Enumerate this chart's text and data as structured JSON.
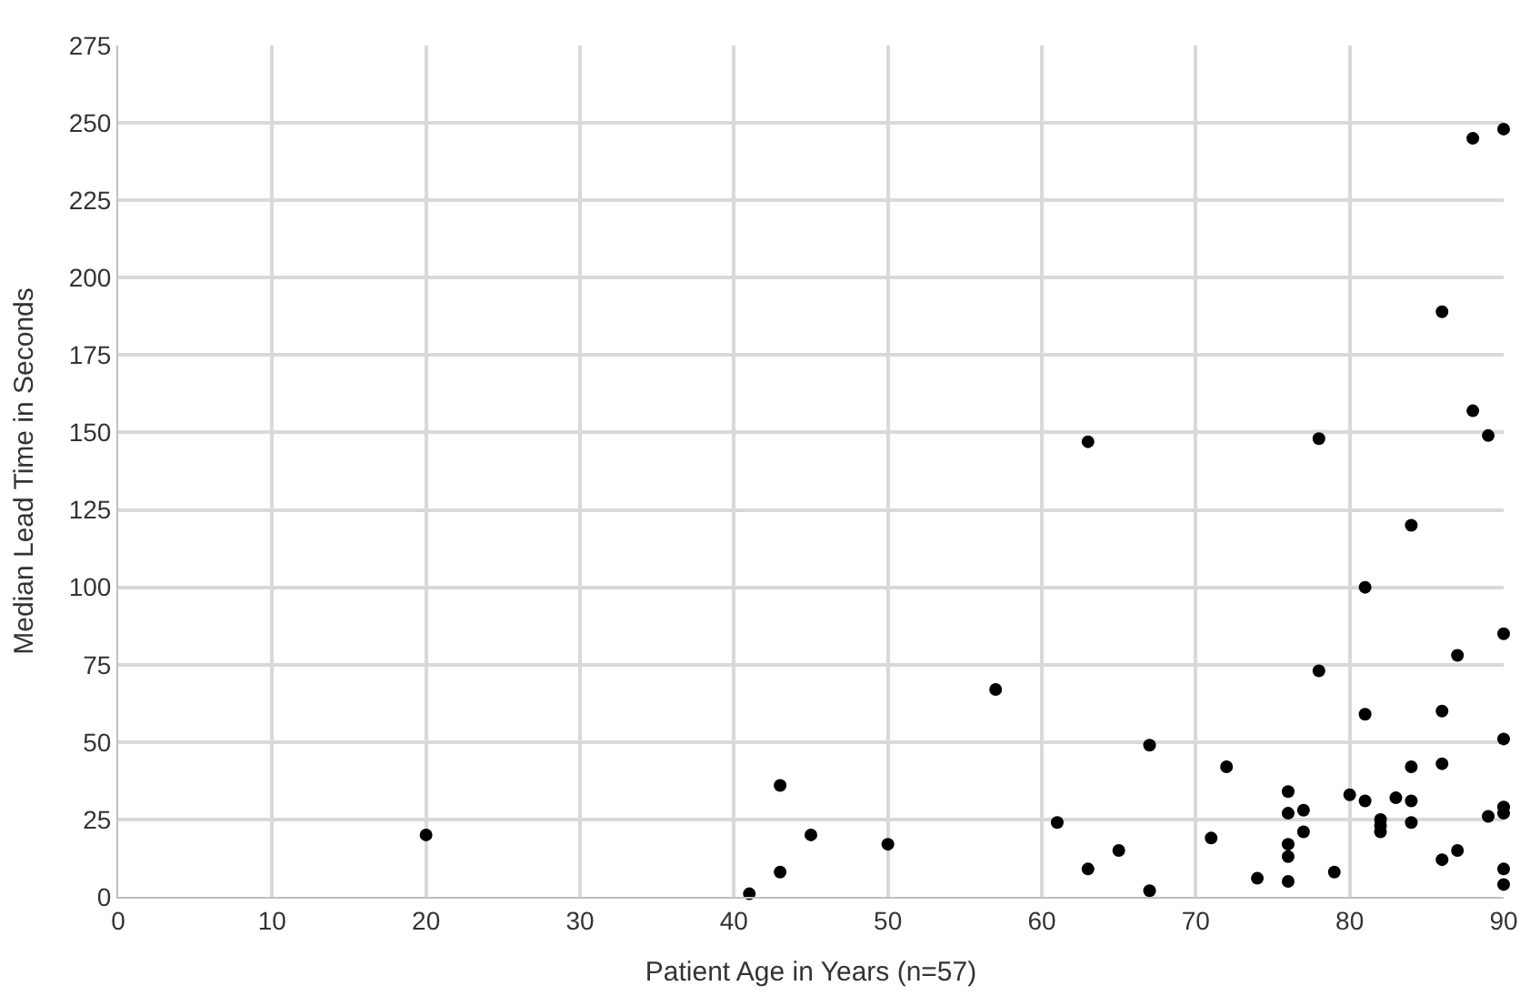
{
  "chart_data": {
    "type": "scatter",
    "xlabel": "Patient Age in Years (n=57)",
    "ylabel": "Median Lead Time in Seconds",
    "x": [
      20,
      41,
      43,
      43,
      45,
      50,
      57,
      61,
      63,
      63,
      65,
      67,
      67,
      71,
      72,
      74,
      76,
      76,
      76,
      76,
      76,
      77,
      77,
      78,
      78,
      79,
      80,
      81,
      81,
      81,
      82,
      82,
      82,
      83,
      84,
      84,
      84,
      84,
      86,
      86,
      86,
      86,
      87,
      87,
      88,
      88,
      89,
      89,
      90,
      90,
      90,
      90,
      90,
      90,
      90
    ],
    "series": [
      {
        "color": "#000000",
        "values": [
          20,
          1,
          8,
          36,
          20,
          17,
          67,
          24,
          147,
          9,
          15,
          49,
          2,
          19,
          42,
          6,
          34,
          27,
          17,
          13,
          5,
          28,
          21,
          148,
          73,
          8,
          33,
          100,
          59,
          31,
          25,
          23,
          21,
          32,
          120,
          42,
          31,
          24,
          189,
          60,
          43,
          12,
          78,
          15,
          245,
          157,
          149,
          26,
          248,
          85,
          51,
          29,
          27,
          9,
          4
        ]
      }
    ],
    "xlim": [
      0,
      90
    ],
    "xticks": [
      0,
      10,
      20,
      30,
      40,
      50,
      60,
      70,
      80,
      90
    ],
    "ylim": [
      0,
      275
    ],
    "yticks": [
      0,
      25,
      50,
      75,
      100,
      125,
      150,
      175,
      200,
      225,
      250,
      275
    ],
    "grid": true,
    "marker": "circle",
    "legend": false
  }
}
